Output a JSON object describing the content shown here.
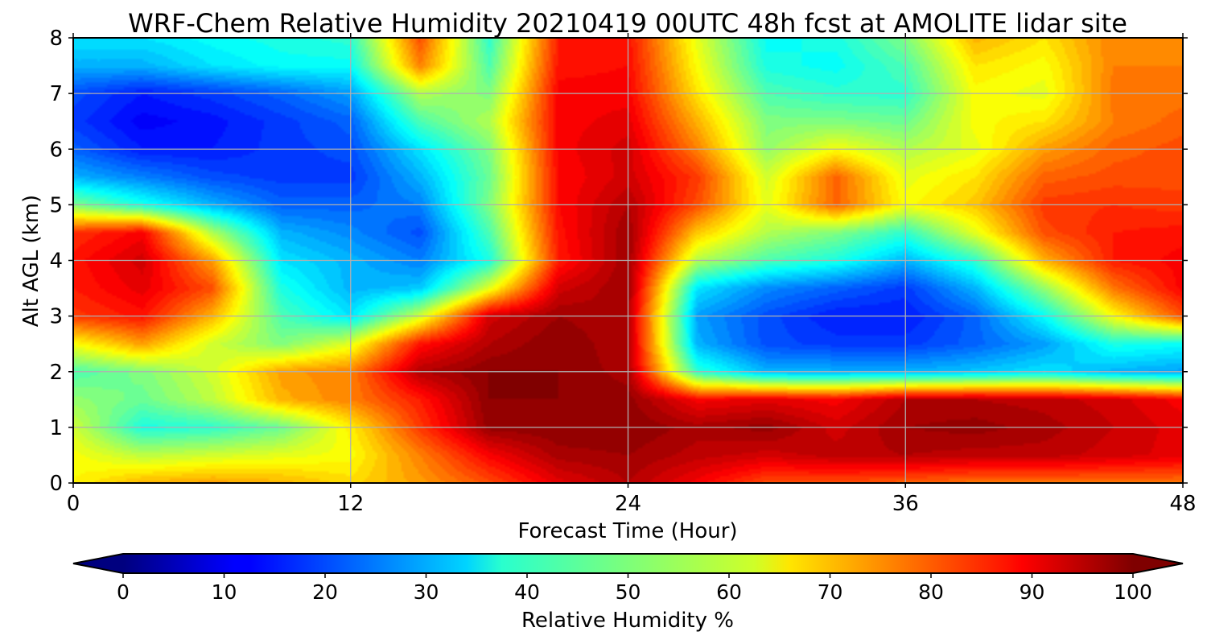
{
  "chart_data": {
    "type": "heatmap",
    "title": "WRF-Chem Relative Humidity 20210419 00UTC 48h fcst at AMOLITE lidar site",
    "xlabel": "Forecast Time (Hour)",
    "ylabel": "Alt AGL (km)",
    "xlim": [
      0,
      48
    ],
    "ylim": [
      0,
      8
    ],
    "x_ticks": [
      "0",
      "12",
      "24",
      "36",
      "48"
    ],
    "y_ticks": [
      "0",
      "1",
      "2",
      "3",
      "4",
      "5",
      "6",
      "7",
      "8"
    ],
    "grid": true,
    "colormap": "jet",
    "colorbar": {
      "label": "Relative Humidity %",
      "ticks": [
        "0",
        "10",
        "20",
        "30",
        "40",
        "50",
        "60",
        "70",
        "80",
        "90",
        "100"
      ],
      "range": [
        0,
        100
      ],
      "extend": "both",
      "orientation": "horizontal"
    },
    "x": [
      0,
      3,
      6,
      9,
      12,
      15,
      18,
      21,
      24,
      27,
      30,
      33,
      36,
      39,
      42,
      45,
      48
    ],
    "y": [
      0,
      0.5,
      1,
      1.5,
      2,
      2.5,
      3,
      3.5,
      4,
      4.5,
      5,
      5.5,
      6,
      6.5,
      7,
      7.5,
      8
    ],
    "z": [
      [
        63,
        70,
        72,
        70,
        66,
        72,
        80,
        90,
        95,
        88,
        80,
        80,
        78,
        76,
        76,
        76,
        76
      ],
      [
        62,
        56,
        58,
        60,
        62,
        75,
        88,
        96,
        97,
        94,
        92,
        94,
        95,
        94,
        94,
        92,
        90
      ],
      [
        58,
        40,
        42,
        48,
        64,
        82,
        98,
        99,
        99,
        96,
        98,
        92,
        97,
        98,
        96,
        93,
        90
      ],
      [
        52,
        48,
        56,
        70,
        75,
        85,
        99,
        99,
        98,
        88,
        90,
        88,
        95,
        95,
        94,
        92,
        88
      ],
      [
        45,
        50,
        58,
        72,
        75,
        95,
        99,
        99,
        96,
        42,
        30,
        30,
        30,
        32,
        35,
        30,
        28
      ],
      [
        62,
        72,
        58,
        50,
        60,
        86,
        95,
        99,
        95,
        30,
        20,
        18,
        18,
        22,
        28,
        40,
        38
      ],
      [
        82,
        86,
        70,
        45,
        35,
        58,
        92,
        97,
        95,
        28,
        20,
        15,
        15,
        22,
        38,
        62,
        80
      ],
      [
        85,
        90,
        80,
        40,
        30,
        32,
        60,
        92,
        97,
        35,
        26,
        22,
        18,
        30,
        52,
        76,
        88
      ],
      [
        86,
        92,
        72,
        35,
        30,
        25,
        40,
        85,
        97,
        55,
        45,
        40,
        30,
        42,
        70,
        85,
        88
      ],
      [
        83,
        88,
        55,
        30,
        26,
        20,
        45,
        86,
        97,
        68,
        55,
        50,
        42,
        60,
        80,
        85,
        86
      ],
      [
        50,
        40,
        30,
        22,
        22,
        25,
        50,
        87,
        95,
        80,
        60,
        78,
        62,
        68,
        82,
        83,
        82
      ],
      [
        30,
        25,
        20,
        18,
        18,
        30,
        48,
        87,
        92,
        82,
        58,
        78,
        60,
        65,
        78,
        80,
        80
      ],
      [
        22,
        15,
        15,
        18,
        20,
        35,
        50,
        88,
        92,
        75,
        52,
        62,
        55,
        60,
        72,
        78,
        80
      ],
      [
        18,
        12,
        14,
        18,
        22,
        45,
        55,
        88,
        90,
        70,
        50,
        50,
        48,
        62,
        65,
        75,
        78
      ],
      [
        20,
        15,
        18,
        22,
        28,
        55,
        50,
        88,
        88,
        65,
        45,
        42,
        42,
        62,
        60,
        76,
        76
      ],
      [
        30,
        30,
        35,
        38,
        38,
        75,
        45,
        86,
        87,
        62,
        40,
        38,
        45,
        65,
        62,
        75,
        75
      ],
      [
        35,
        35,
        38,
        40,
        42,
        80,
        42,
        85,
        86,
        60,
        38,
        40,
        50,
        70,
        65,
        75,
        74
      ]
    ]
  }
}
